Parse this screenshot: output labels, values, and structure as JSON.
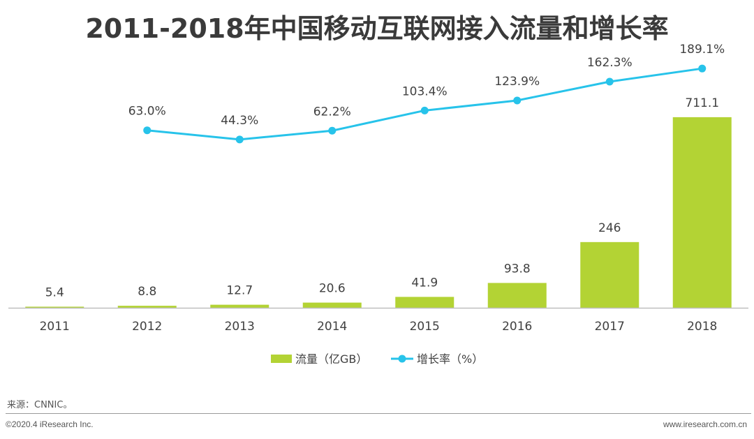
{
  "title": "2011-2018年中国移动互联网接入流量和增长率",
  "source": "来源：CNNIC。",
  "footer": {
    "copyright": "©2020.4 iResearch Inc.",
    "website": "www.iresearch.com.cn"
  },
  "colors": {
    "bar": "#b3d334",
    "line": "#27c3ea",
    "axis": "#bfbfbf"
  },
  "chart_data": {
    "type": "bar+line",
    "categories": [
      "2011",
      "2012",
      "2013",
      "2014",
      "2015",
      "2016",
      "2017",
      "2018"
    ],
    "series": [
      {
        "name": "流量（亿GB）",
        "type": "bar",
        "values": [
          5.4,
          8.8,
          12.7,
          20.6,
          41.9,
          93.8,
          246,
          711.1
        ],
        "labels": [
          "5.4",
          "8.8",
          "12.7",
          "20.6",
          "41.9",
          "93.8",
          "246",
          "711.1"
        ]
      },
      {
        "name": "增长率（%）",
        "type": "line",
        "values": [
          null,
          63.0,
          44.3,
          62.2,
          103.4,
          123.9,
          162.3,
          189.1
        ],
        "labels": [
          "",
          "63.0%",
          "44.3%",
          "62.2%",
          "103.4%",
          "123.9%",
          "162.3%",
          "189.1%"
        ]
      }
    ],
    "bar_ylim": [
      0,
      820
    ],
    "line_ylim": [
      -300,
      215
    ],
    "legend_position": "bottom-center",
    "grid": false
  }
}
